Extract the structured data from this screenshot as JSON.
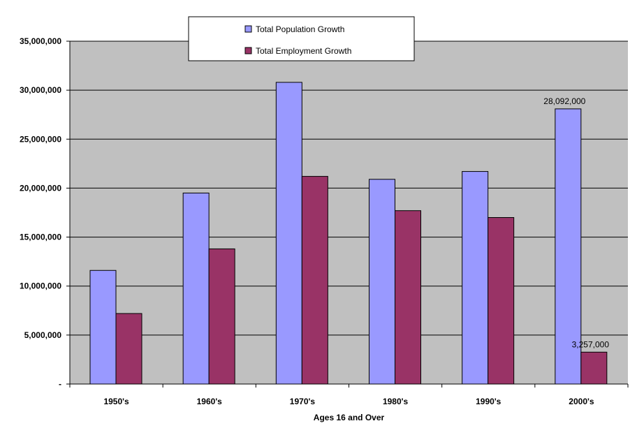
{
  "chart_data": {
    "type": "bar",
    "title": "",
    "xlabel": "Ages 16 and Over",
    "ylabel": "",
    "categories": [
      "1950's",
      "1960's",
      "1970's",
      "1980's",
      "1990's",
      "2000's"
    ],
    "series": [
      {
        "name": "Total Population Growth",
        "color": "#9999ff",
        "values": [
          11600000,
          19500000,
          30800000,
          20900000,
          21700000,
          28092000
        ]
      },
      {
        "name": "Total Employment Growth",
        "color": "#993366",
        "values": [
          7200000,
          13800000,
          21200000,
          17700000,
          17000000,
          3257000
        ]
      }
    ],
    "data_labels": [
      {
        "series": 0,
        "category": 5,
        "text": "28,092,000"
      },
      {
        "series": 1,
        "category": 5,
        "text": "3,257,000"
      }
    ],
    "ylim": [
      0,
      35000000
    ],
    "yticks": [
      {
        "value": 0,
        "label": "-"
      },
      {
        "value": 5000000,
        "label": "5,000,000"
      },
      {
        "value": 10000000,
        "label": "10,000,000"
      },
      {
        "value": 15000000,
        "label": "15,000,000"
      },
      {
        "value": 20000000,
        "label": "20,000,000"
      },
      {
        "value": 25000000,
        "label": "25,000,000"
      },
      {
        "value": 30000000,
        "label": "30,000,000"
      },
      {
        "value": 35000000,
        "label": "35,000,000"
      }
    ],
    "grid": true,
    "plot_background": "#c0c0c0",
    "legend_position": "top-center"
  }
}
